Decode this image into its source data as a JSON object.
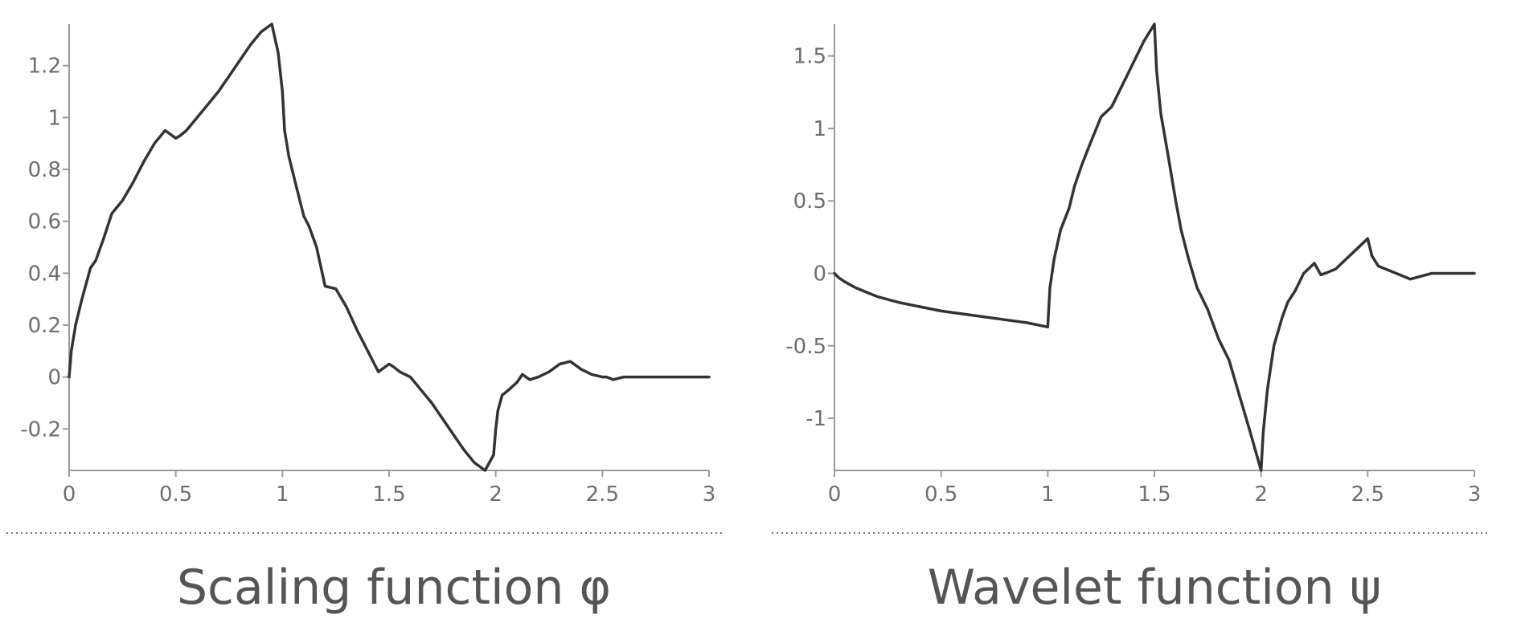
{
  "chart_data": [
    {
      "type": "line",
      "title": "",
      "caption": "Scaling function φ",
      "xlabel": "",
      "ylabel": "",
      "xlim": [
        0,
        3
      ],
      "ylim": [
        -0.36,
        1.36
      ],
      "xticks": [
        0,
        0.5,
        1,
        1.5,
        2,
        2.5,
        3
      ],
      "xtick_labels": [
        "0",
        "0.5",
        "1",
        "1.5",
        "2",
        "2.5",
        "3"
      ],
      "yticks": [
        -0.2,
        0,
        0.2,
        0.4,
        0.6,
        0.8,
        1,
        1.2
      ],
      "ytick_labels": [
        "-0.2",
        "0",
        "0.2",
        "0.4",
        "0.6",
        "0.8",
        "1",
        "1.2"
      ],
      "grid": false,
      "series": [
        {
          "x": [
            0,
            0.01,
            0.03,
            0.06,
            0.1,
            0.125,
            0.16,
            0.2,
            0.25,
            0.3,
            0.35,
            0.4,
            0.45,
            0.5,
            0.52,
            0.55,
            0.6,
            0.65,
            0.7,
            0.75,
            0.8,
            0.85,
            0.9,
            0.95,
            0.98,
            1.0,
            1.01,
            1.03,
            1.06,
            1.1,
            1.125,
            1.16,
            1.2,
            1.25,
            1.3,
            1.35,
            1.4,
            1.45,
            1.5,
            1.52,
            1.55,
            1.6,
            1.65,
            1.7,
            1.75,
            1.8,
            1.85,
            1.9,
            1.95,
            1.99,
            2.0,
            2.01,
            2.03,
            2.06,
            2.1,
            2.125,
            2.16,
            2.2,
            2.25,
            2.3,
            2.35,
            2.4,
            2.45,
            2.5,
            2.52,
            2.55,
            2.6,
            2.65,
            2.7,
            2.75,
            2.8,
            2.85,
            2.9,
            2.95,
            3.0
          ],
          "y": [
            0,
            0.1,
            0.2,
            0.3,
            0.42,
            0.45,
            0.53,
            0.63,
            0.68,
            0.75,
            0.83,
            0.9,
            0.95,
            0.92,
            0.93,
            0.95,
            1.0,
            1.05,
            1.1,
            1.16,
            1.22,
            1.28,
            1.33,
            1.36,
            1.25,
            1.1,
            0.95,
            0.85,
            0.75,
            0.62,
            0.58,
            0.5,
            0.35,
            0.34,
            0.27,
            0.18,
            0.1,
            0.02,
            0.05,
            0.04,
            0.02,
            0.0,
            -0.05,
            -0.1,
            -0.16,
            -0.22,
            -0.28,
            -0.33,
            -0.36,
            -0.3,
            -0.2,
            -0.13,
            -0.07,
            -0.05,
            -0.02,
            0.01,
            -0.01,
            0.0,
            0.02,
            0.05,
            0.06,
            0.03,
            0.01,
            0.0,
            0.0,
            -0.01,
            0.0,
            0.0,
            0.0,
            0.0,
            0.0,
            0.0,
            0.0,
            0.0,
            0.0
          ]
        }
      ]
    },
    {
      "type": "line",
      "title": "",
      "caption": "Wavelet function ψ",
      "xlabel": "",
      "ylabel": "",
      "xlim": [
        0,
        3
      ],
      "ylim": [
        -1.36,
        1.72
      ],
      "xticks": [
        0,
        0.5,
        1,
        1.5,
        2,
        2.5,
        3
      ],
      "xtick_labels": [
        "0",
        "0.5",
        "1",
        "1.5",
        "2",
        "2.5",
        "3"
      ],
      "yticks": [
        -1,
        -0.5,
        0,
        0.5,
        1,
        1.5
      ],
      "ytick_labels": [
        "-1",
        "-0.5",
        "0",
        "0.5",
        "1",
        "1.5"
      ],
      "grid": false,
      "series": [
        {
          "x": [
            0,
            0.02,
            0.05,
            0.1,
            0.15,
            0.2,
            0.3,
            0.4,
            0.5,
            0.6,
            0.7,
            0.8,
            0.9,
            1.0,
            1.01,
            1.03,
            1.06,
            1.1,
            1.125,
            1.16,
            1.2,
            1.25,
            1.3,
            1.35,
            1.4,
            1.45,
            1.5,
            1.51,
            1.53,
            1.56,
            1.6,
            1.625,
            1.66,
            1.7,
            1.75,
            1.8,
            1.85,
            1.9,
            1.95,
            2.0,
            2.01,
            2.03,
            2.06,
            2.1,
            2.125,
            2.16,
            2.2,
            2.25,
            2.28,
            2.3,
            2.35,
            2.4,
            2.45,
            2.5,
            2.52,
            2.55,
            2.6,
            2.65,
            2.7,
            2.75,
            2.8,
            2.85,
            2.9,
            2.95,
            3.0
          ],
          "y": [
            0,
            -0.03,
            -0.06,
            -0.1,
            -0.13,
            -0.16,
            -0.2,
            -0.23,
            -0.26,
            -0.28,
            -0.3,
            -0.32,
            -0.34,
            -0.37,
            -0.1,
            0.1,
            0.3,
            0.45,
            0.6,
            0.75,
            0.9,
            1.08,
            1.15,
            1.3,
            1.45,
            1.6,
            1.72,
            1.4,
            1.1,
            0.85,
            0.5,
            0.3,
            0.1,
            -0.1,
            -0.25,
            -0.45,
            -0.6,
            -0.85,
            -1.1,
            -1.36,
            -1.1,
            -0.8,
            -0.5,
            -0.3,
            -0.2,
            -0.12,
            0.0,
            0.07,
            -0.01,
            0.0,
            0.03,
            0.1,
            0.17,
            0.24,
            0.12,
            0.05,
            0.02,
            -0.01,
            -0.04,
            -0.02,
            0.0,
            0.0,
            0.0,
            0.0,
            0.0
          ]
        }
      ]
    }
  ]
}
